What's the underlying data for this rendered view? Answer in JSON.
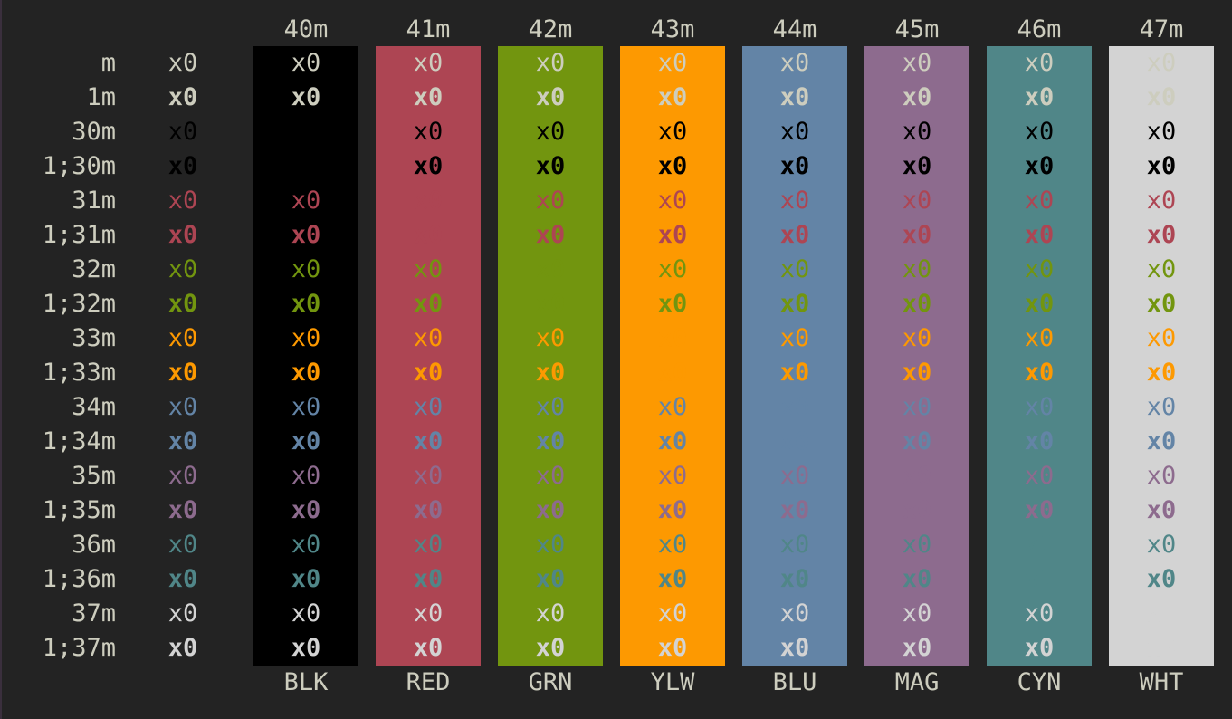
{
  "colors": {
    "background": "#232323",
    "BLK": "#000000",
    "RED": "#ad4553",
    "GRN": "#72950f",
    "YLW": "#fd9901",
    "BLU": "#6384a6",
    "MAG": "#8d6b8e",
    "CYN": "#508688",
    "WHT": "#d3d3d3",
    "default_fg": "#cdcdbe"
  },
  "terminal": {
    "bg_headers": [
      "40m",
      "41m",
      "42m",
      "43m",
      "44m",
      "45m",
      "46m",
      "47m"
    ],
    "bg_footers": [
      "BLK",
      "RED",
      "GRN",
      "YLW",
      "BLU",
      "MAG",
      "CYN",
      "WHT"
    ],
    "sample_text": "x0",
    "rows": [
      {
        "label": "m",
        "fg": "default",
        "bold": false
      },
      {
        "label": "1m",
        "fg": "default",
        "bold": true
      },
      {
        "label": "30m",
        "fg": "BLK",
        "bold": false
      },
      {
        "label": "1;30m",
        "fg": "BLK",
        "bold": true
      },
      {
        "label": "31m",
        "fg": "RED",
        "bold": false
      },
      {
        "label": "1;31m",
        "fg": "RED",
        "bold": true
      },
      {
        "label": "32m",
        "fg": "GRN",
        "bold": false
      },
      {
        "label": "1;32m",
        "fg": "GRN",
        "bold": true
      },
      {
        "label": "33m",
        "fg": "YLW",
        "bold": false
      },
      {
        "label": "1;33m",
        "fg": "YLW",
        "bold": true
      },
      {
        "label": "34m",
        "fg": "BLU",
        "bold": false
      },
      {
        "label": "1;34m",
        "fg": "BLU",
        "bold": true
      },
      {
        "label": "35m",
        "fg": "MAG",
        "bold": false
      },
      {
        "label": "1;35m",
        "fg": "MAG",
        "bold": true
      },
      {
        "label": "36m",
        "fg": "CYN",
        "bold": false
      },
      {
        "label": "1;36m",
        "fg": "CYN",
        "bold": true
      },
      {
        "label": "37m",
        "fg": "WHT",
        "bold": false
      },
      {
        "label": "1;37m",
        "fg": "WHT",
        "bold": true
      }
    ]
  }
}
